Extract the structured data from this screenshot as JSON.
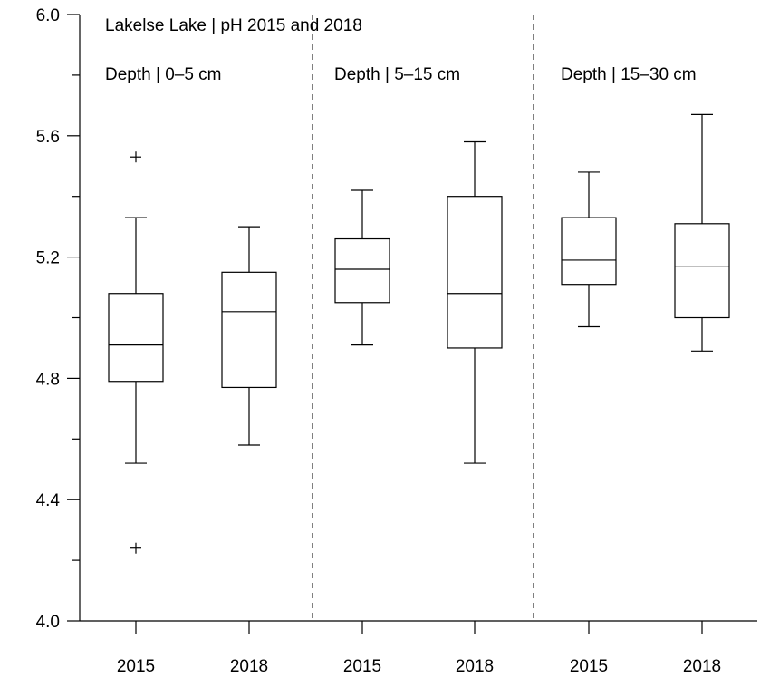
{
  "chart_data": {
    "type": "box",
    "title": "Lakelse Lake | pH 2015 and 2018",
    "ylim": [
      4.0,
      6.0
    ],
    "yticks": [
      {
        "value": 4.0,
        "label": "4.0"
      },
      {
        "value": 4.4,
        "label": "4.4"
      },
      {
        "value": 4.8,
        "label": "4.8"
      },
      {
        "value": 5.2,
        "label": "5.2"
      },
      {
        "value": 5.6,
        "label": "5.6"
      },
      {
        "value": 6.0,
        "label": "6.0"
      }
    ],
    "yminor": [
      4.2,
      4.6,
      5.0,
      5.4,
      5.8
    ],
    "panels": [
      {
        "label": "Depth | 0–5 cm",
        "boxes": [
          {
            "category": "2015",
            "whisker_low": 4.52,
            "q1": 4.79,
            "median": 4.91,
            "q3": 5.08,
            "whisker_high": 5.33,
            "outliers": [
              5.53,
              4.24
            ]
          },
          {
            "category": "2018",
            "whisker_low": 4.58,
            "q1": 4.77,
            "median": 5.02,
            "q3": 5.15,
            "whisker_high": 5.3,
            "outliers": []
          }
        ]
      },
      {
        "label": "Depth | 5–15 cm",
        "boxes": [
          {
            "category": "2015",
            "whisker_low": 4.91,
            "q1": 5.05,
            "median": 5.16,
            "q3": 5.26,
            "whisker_high": 5.42,
            "outliers": []
          },
          {
            "category": "2018",
            "whisker_low": 4.52,
            "q1": 4.9,
            "median": 5.08,
            "q3": 5.4,
            "whisker_high": 5.58,
            "outliers": []
          }
        ]
      },
      {
        "label": "Depth | 15–30 cm",
        "boxes": [
          {
            "category": "2015",
            "whisker_low": 4.97,
            "q1": 5.11,
            "median": 5.19,
            "q3": 5.33,
            "whisker_high": 5.48,
            "outliers": []
          },
          {
            "category": "2018",
            "whisker_low": 4.89,
            "q1": 5.0,
            "median": 5.17,
            "q3": 5.31,
            "whisker_high": 5.67,
            "outliers": []
          }
        ]
      }
    ],
    "grid": false,
    "separators": "dashed"
  }
}
